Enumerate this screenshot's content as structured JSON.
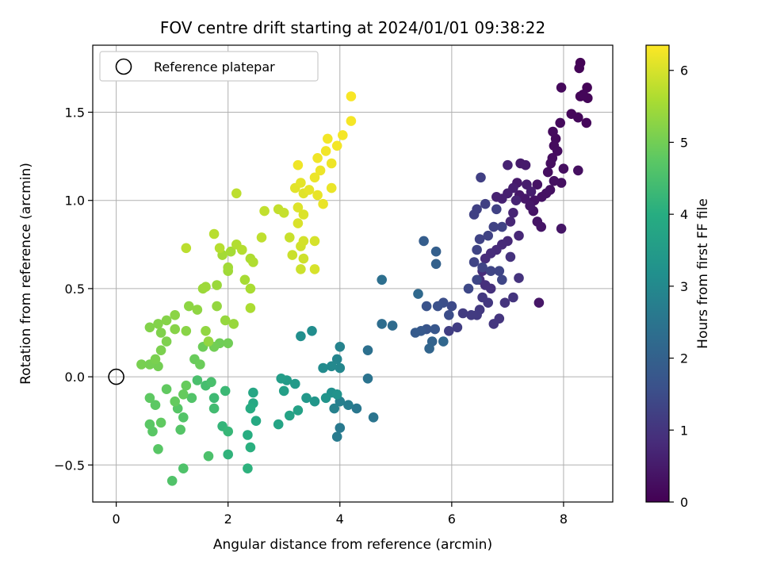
{
  "chart_data": {
    "type": "scatter",
    "title": "FOV centre drift starting at 2024/01/01 09:38:22",
    "xlabel": "Angular distance from reference (arcmin)",
    "ylabel": "Rotation from reference (arcmin)",
    "xlim": [
      -0.42,
      8.88
    ],
    "ylim": [
      -0.71,
      1.88
    ],
    "xticks": [
      0,
      2,
      4,
      6,
      8
    ],
    "yticks": [
      -0.5,
      0.0,
      0.5,
      1.0,
      1.5
    ],
    "xtick_labels": [
      "0",
      "2",
      "4",
      "6",
      "8"
    ],
    "ytick_labels": [
      "−0.5",
      "0.0",
      "0.5",
      "1.0",
      "1.5"
    ],
    "grid": true,
    "legend": {
      "placement": "top-left",
      "entries": [
        {
          "label": "Reference platepar",
          "marker": "open-circle"
        }
      ]
    },
    "reference_point": {
      "x": 0,
      "y": 0
    },
    "colorbar": {
      "label": "Hours from first FF file",
      "min": 0,
      "max": 6.35,
      "ticks": [
        0,
        1,
        2,
        3,
        4,
        5,
        6
      ],
      "colormap": "viridis"
    },
    "points_format": "[x, y, hours]",
    "points": [
      [
        8.3,
        1.78,
        0.05
      ],
      [
        8.42,
        1.64,
        0.06
      ],
      [
        8.28,
        1.75,
        0.07
      ],
      [
        8.3,
        1.59,
        0.08
      ],
      [
        8.43,
        1.58,
        0.09
      ],
      [
        8.35,
        1.6,
        0.1
      ],
      [
        8.41,
        1.44,
        0.12
      ],
      [
        8.26,
        1.47,
        0.13
      ],
      [
        8.14,
        1.49,
        0.14
      ],
      [
        7.96,
        1.64,
        0.15
      ],
      [
        7.94,
        1.44,
        0.17
      ],
      [
        7.86,
        1.35,
        0.18
      ],
      [
        7.83,
        1.31,
        0.19
      ],
      [
        7.81,
        1.39,
        0.2
      ],
      [
        7.89,
        1.28,
        0.22
      ],
      [
        7.8,
        1.24,
        0.23
      ],
      [
        7.77,
        1.21,
        0.24
      ],
      [
        7.72,
        1.16,
        0.25
      ],
      [
        8.0,
        1.18,
        0.26
      ],
      [
        8.26,
        1.17,
        0.27
      ],
      [
        7.96,
        1.1,
        0.28
      ],
      [
        7.83,
        1.11,
        0.3
      ],
      [
        7.76,
        1.06,
        0.31
      ],
      [
        7.69,
        1.04,
        0.32
      ],
      [
        7.61,
        1.02,
        0.33
      ],
      [
        7.53,
        1.09,
        0.34
      ],
      [
        7.48,
        1.0,
        0.35
      ],
      [
        7.46,
        0.94,
        0.36
      ],
      [
        7.53,
        0.88,
        0.38
      ],
      [
        7.6,
        0.85,
        0.39
      ],
      [
        7.96,
        0.84,
        0.4
      ],
      [
        7.56,
        0.42,
        0.42
      ],
      [
        7.4,
        0.97,
        0.44
      ],
      [
        7.31,
        1.01,
        0.45
      ],
      [
        7.21,
        1.03,
        0.47
      ],
      [
        7.17,
        1.1,
        0.48
      ],
      [
        7.23,
        1.21,
        0.5
      ],
      [
        7.32,
        1.2,
        0.52
      ],
      [
        7.34,
        1.09,
        0.54
      ],
      [
        7.42,
        1.05,
        0.56
      ],
      [
        7.1,
        1.07,
        0.58
      ],
      [
        7.0,
        1.04,
        0.6
      ],
      [
        6.9,
        1.01,
        0.62
      ],
      [
        6.8,
        1.02,
        0.64
      ],
      [
        7.0,
        1.2,
        0.66
      ],
      [
        7.15,
        1.0,
        0.68
      ],
      [
        7.1,
        0.93,
        0.7
      ],
      [
        7.05,
        0.88,
        0.72
      ],
      [
        7.2,
        0.8,
        0.74
      ],
      [
        7.0,
        0.77,
        0.76
      ],
      [
        6.9,
        0.75,
        0.78
      ],
      [
        6.8,
        0.72,
        0.8
      ],
      [
        6.7,
        0.7,
        0.82
      ],
      [
        6.6,
        0.67,
        0.84
      ],
      [
        6.55,
        0.6,
        0.86
      ],
      [
        6.5,
        0.55,
        0.88
      ],
      [
        6.6,
        0.52,
        0.9
      ],
      [
        6.7,
        0.5,
        0.92
      ],
      [
        7.05,
        0.68,
        0.94
      ],
      [
        7.2,
        0.56,
        0.96
      ],
      [
        6.95,
        0.42,
        0.98
      ],
      [
        7.1,
        0.45,
        1.0
      ],
      [
        6.85,
        0.33,
        1.02
      ],
      [
        6.75,
        0.3,
        1.04
      ],
      [
        6.65,
        0.42,
        1.06
      ],
      [
        6.55,
        0.45,
        1.08
      ],
      [
        6.5,
        0.38,
        1.1
      ],
      [
        6.45,
        0.35,
        1.12
      ],
      [
        6.35,
        0.35,
        1.14
      ],
      [
        6.2,
        0.36,
        1.16
      ],
      [
        6.1,
        0.28,
        1.18
      ],
      [
        5.95,
        0.26,
        1.2
      ],
      [
        6.52,
        1.13,
        1.22
      ],
      [
        6.6,
        0.98,
        1.23
      ],
      [
        6.45,
        0.95,
        1.24
      ],
      [
        6.4,
        0.92,
        1.25
      ],
      [
        6.8,
        0.95,
        1.26
      ],
      [
        6.75,
        0.85,
        1.27
      ],
      [
        6.9,
        0.85,
        1.28
      ],
      [
        6.65,
        0.8,
        1.29
      ],
      [
        6.5,
        0.78,
        1.3
      ],
      [
        6.45,
        0.72,
        1.31
      ],
      [
        6.4,
        0.65,
        1.32
      ],
      [
        6.55,
        0.62,
        1.33
      ],
      [
        6.7,
        0.6,
        1.34
      ],
      [
        6.85,
        0.6,
        1.35
      ],
      [
        6.9,
        0.55,
        1.36
      ],
      [
        6.45,
        0.55,
        1.37
      ],
      [
        6.3,
        0.5,
        1.4
      ],
      [
        6.0,
        0.4,
        1.45
      ],
      [
        5.95,
        0.35,
        1.5
      ],
      [
        5.85,
        0.42,
        1.55
      ],
      [
        5.75,
        0.4,
        1.6
      ],
      [
        5.55,
        0.4,
        1.65
      ],
      [
        5.55,
        0.27,
        1.7
      ],
      [
        5.7,
        0.27,
        1.75
      ],
      [
        5.45,
        0.26,
        1.8
      ],
      [
        5.35,
        0.25,
        1.85
      ],
      [
        5.5,
        0.77,
        1.9
      ],
      [
        5.72,
        0.71,
        1.95
      ],
      [
        5.72,
        0.64,
        2.0
      ],
      [
        5.65,
        0.2,
        2.05
      ],
      [
        5.6,
        0.16,
        2.1
      ],
      [
        5.85,
        0.2,
        2.15
      ],
      [
        5.4,
        0.47,
        2.2
      ],
      [
        4.94,
        0.29,
        2.25
      ],
      [
        4.75,
        0.3,
        2.3
      ],
      [
        4.75,
        0.55,
        2.35
      ],
      [
        4.5,
        0.15,
        2.4
      ],
      [
        4.5,
        -0.01,
        2.45
      ],
      [
        4.6,
        -0.23,
        2.5
      ],
      [
        4.3,
        -0.18,
        2.55
      ],
      [
        4.0,
        -0.29,
        2.6
      ],
      [
        3.95,
        -0.34,
        2.65
      ],
      [
        4.15,
        -0.16,
        2.7
      ],
      [
        4.0,
        -0.14,
        2.75
      ],
      [
        3.9,
        -0.18,
        2.8
      ],
      [
        4.0,
        0.17,
        2.85
      ],
      [
        3.95,
        0.1,
        2.9
      ],
      [
        4.0,
        0.05,
        2.95
      ],
      [
        3.85,
        0.06,
        3.0
      ],
      [
        3.7,
        0.05,
        3.05
      ],
      [
        3.5,
        0.26,
        3.1
      ],
      [
        3.3,
        0.23,
        3.15
      ],
      [
        3.85,
        -0.09,
        3.2
      ],
      [
        3.95,
        -0.1,
        3.25
      ],
      [
        3.75,
        -0.12,
        3.3
      ],
      [
        3.55,
        -0.14,
        3.35
      ],
      [
        3.4,
        -0.12,
        3.4
      ],
      [
        3.2,
        -0.04,
        3.45
      ],
      [
        3.05,
        -0.02,
        3.5
      ],
      [
        2.95,
        -0.01,
        3.55
      ],
      [
        3.0,
        -0.08,
        3.6
      ],
      [
        3.25,
        -0.19,
        3.65
      ],
      [
        3.1,
        -0.22,
        3.7
      ],
      [
        2.9,
        -0.27,
        3.75
      ],
      [
        2.45,
        -0.09,
        3.8
      ],
      [
        2.45,
        -0.15,
        3.85
      ],
      [
        2.5,
        -0.25,
        3.9
      ],
      [
        2.4,
        -0.18,
        3.95
      ],
      [
        2.35,
        -0.33,
        4.0
      ],
      [
        2.4,
        -0.4,
        4.05
      ],
      [
        2.35,
        -0.52,
        4.1
      ],
      [
        2.0,
        -0.44,
        4.15
      ],
      [
        1.9,
        -0.28,
        4.2
      ],
      [
        2.0,
        -0.31,
        4.25
      ],
      [
        1.95,
        -0.08,
        4.3
      ],
      [
        1.75,
        -0.12,
        4.35
      ],
      [
        1.75,
        -0.18,
        4.4
      ],
      [
        1.6,
        -0.05,
        4.45
      ],
      [
        1.7,
        -0.03,
        4.5
      ],
      [
        1.45,
        -0.02,
        4.52
      ],
      [
        1.65,
        -0.45,
        4.55
      ],
      [
        1.2,
        -0.52,
        4.58
      ],
      [
        1.0,
        -0.59,
        4.6
      ],
      [
        1.35,
        -0.12,
        4.62
      ],
      [
        1.2,
        -0.23,
        4.64
      ],
      [
        1.15,
        -0.3,
        4.66
      ],
      [
        1.1,
        -0.18,
        4.68
      ],
      [
        0.75,
        -0.41,
        4.7
      ],
      [
        0.65,
        -0.31,
        4.72
      ],
      [
        0.6,
        -0.27,
        4.74
      ],
      [
        0.7,
        -0.16,
        4.76
      ],
      [
        0.6,
        -0.12,
        4.78
      ],
      [
        0.8,
        -0.26,
        4.8
      ],
      [
        0.9,
        -0.07,
        4.82
      ],
      [
        1.05,
        -0.14,
        4.84
      ],
      [
        1.2,
        -0.1,
        4.86
      ],
      [
        1.25,
        -0.05,
        4.88
      ],
      [
        1.4,
        0.1,
        4.9
      ],
      [
        1.5,
        0.07,
        4.92
      ],
      [
        1.55,
        0.17,
        4.94
      ],
      [
        1.85,
        0.19,
        4.96
      ],
      [
        2.0,
        0.19,
        4.98
      ],
      [
        1.75,
        0.17,
        5.0
      ],
      [
        0.75,
        0.06,
        5.02
      ],
      [
        0.6,
        0.07,
        5.04
      ],
      [
        0.45,
        0.07,
        5.06
      ],
      [
        0.7,
        0.1,
        5.08
      ],
      [
        0.8,
        0.15,
        5.1
      ],
      [
        0.9,
        0.2,
        5.12
      ],
      [
        0.8,
        0.25,
        5.14
      ],
      [
        0.6,
        0.28,
        5.16
      ],
      [
        0.75,
        0.3,
        5.18
      ],
      [
        0.9,
        0.32,
        5.2
      ],
      [
        1.05,
        0.27,
        5.22
      ],
      [
        1.25,
        0.26,
        5.24
      ],
      [
        1.05,
        0.35,
        5.26
      ],
      [
        1.3,
        0.4,
        5.28
      ],
      [
        1.45,
        0.38,
        5.3
      ],
      [
        1.6,
        0.26,
        5.32
      ],
      [
        1.65,
        0.2,
        5.34
      ],
      [
        1.8,
        0.4,
        5.36
      ],
      [
        1.95,
        0.32,
        5.38
      ],
      [
        2.1,
        0.3,
        5.4
      ],
      [
        1.8,
        0.52,
        5.42
      ],
      [
        1.55,
        0.5,
        5.44
      ],
      [
        1.6,
        0.51,
        5.46
      ],
      [
        2.0,
        0.6,
        5.48
      ],
      [
        2.0,
        0.62,
        5.5
      ],
      [
        1.9,
        0.69,
        5.52
      ],
      [
        2.05,
        0.71,
        5.54
      ],
      [
        2.3,
        0.55,
        5.56
      ],
      [
        2.4,
        0.5,
        5.58
      ],
      [
        2.4,
        0.39,
        5.6
      ],
      [
        2.4,
        0.67,
        5.62
      ],
      [
        2.45,
        0.65,
        5.64
      ],
      [
        2.15,
        0.75,
        5.66
      ],
      [
        2.25,
        0.72,
        5.68
      ],
      [
        1.85,
        0.73,
        5.7
      ],
      [
        1.75,
        0.81,
        5.72
      ],
      [
        1.25,
        0.73,
        5.74
      ],
      [
        2.15,
        1.04,
        5.76
      ],
      [
        2.6,
        0.79,
        5.78
      ],
      [
        2.65,
        0.94,
        5.8
      ],
      [
        2.9,
        0.95,
        5.82
      ],
      [
        3.0,
        0.93,
        5.84
      ],
      [
        3.1,
        0.79,
        5.86
      ],
      [
        3.15,
        0.69,
        5.88
      ],
      [
        3.3,
        0.61,
        5.9
      ],
      [
        3.35,
        0.67,
        5.92
      ],
      [
        3.3,
        0.74,
        5.94
      ],
      [
        3.35,
        0.77,
        5.96
      ],
      [
        3.55,
        0.77,
        5.98
      ],
      [
        3.55,
        0.61,
        6.0
      ],
      [
        3.25,
        0.87,
        6.02
      ],
      [
        3.35,
        0.92,
        6.04
      ],
      [
        3.25,
        0.96,
        6.06
      ],
      [
        3.35,
        1.04,
        6.08
      ],
      [
        3.2,
        1.07,
        6.1
      ],
      [
        3.3,
        1.1,
        6.12
      ],
      [
        3.45,
        1.06,
        6.14
      ],
      [
        3.6,
        1.03,
        6.16
      ],
      [
        3.7,
        0.98,
        6.17
      ],
      [
        3.85,
        1.07,
        6.18
      ],
      [
        3.55,
        1.13,
        6.19
      ],
      [
        3.65,
        1.17,
        6.2
      ],
      [
        3.85,
        1.21,
        6.21
      ],
      [
        3.25,
        1.2,
        6.22
      ],
      [
        3.6,
        1.24,
        6.23
      ],
      [
        3.75,
        1.28,
        6.24
      ],
      [
        3.78,
        1.35,
        6.25
      ],
      [
        3.95,
        1.31,
        6.26
      ],
      [
        4.05,
        1.37,
        6.27
      ],
      [
        4.2,
        1.45,
        6.28
      ],
      [
        4.2,
        1.59,
        6.3
      ]
    ]
  }
}
